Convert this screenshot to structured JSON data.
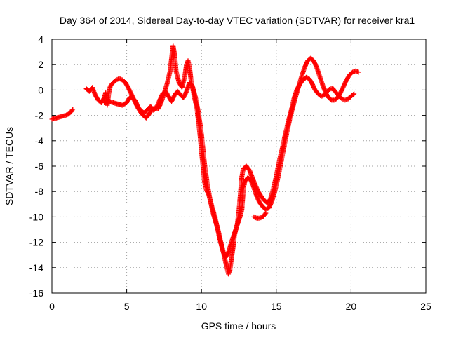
{
  "chart_data": {
    "type": "scatter",
    "title": "Day 364 of 2014, Sidereal Day-to-day VTEC variation (SDTVAR) for receiver kra1",
    "xlabel": "GPS time / hours",
    "ylabel": "SDTVAR / TECUs",
    "xlim": [
      0,
      25
    ],
    "ylim": [
      -16,
      4
    ],
    "xticks": [
      0,
      5,
      10,
      15,
      20,
      25
    ],
    "yticks": [
      -16,
      -14,
      -12,
      -10,
      -8,
      -6,
      -4,
      -2,
      0,
      2,
      4
    ],
    "grid": true,
    "marker": "plus",
    "color": "#ff0000",
    "series": [
      {
        "points": [
          [
            0.0,
            -2.3
          ],
          [
            0.3,
            -2.2
          ],
          [
            0.6,
            -2.1
          ],
          [
            0.9,
            -2.0
          ],
          [
            1.1,
            -1.9
          ],
          [
            1.3,
            -1.7
          ],
          [
            1.4,
            -1.5
          ]
        ]
      },
      {
        "points": [
          [
            2.3,
            0.1
          ],
          [
            2.5,
            -0.1
          ],
          [
            2.7,
            0.2
          ],
          [
            2.9,
            -0.4
          ],
          [
            3.1,
            -0.8
          ],
          [
            3.3,
            -1.0
          ],
          [
            3.5,
            -0.6
          ],
          [
            3.6,
            -0.2
          ],
          [
            3.7,
            -1.2
          ],
          [
            3.8,
            -0.3
          ],
          [
            3.9,
            0.3
          ],
          [
            4.1,
            0.6
          ],
          [
            4.3,
            0.8
          ],
          [
            4.5,
            0.9
          ],
          [
            4.7,
            0.8
          ],
          [
            4.9,
            0.6
          ],
          [
            5.1,
            0.2
          ],
          [
            5.3,
            -0.3
          ],
          [
            5.5,
            -0.8
          ],
          [
            5.7,
            -1.3
          ],
          [
            5.9,
            -1.7
          ],
          [
            6.1,
            -2.0
          ],
          [
            6.3,
            -2.2
          ],
          [
            6.5,
            -1.9
          ],
          [
            6.7,
            -1.5
          ],
          [
            6.9,
            -1.4
          ],
          [
            7.1,
            -1.5
          ],
          [
            7.3,
            -1.0
          ],
          [
            7.5,
            -0.3
          ],
          [
            7.7,
            0.5
          ],
          [
            7.9,
            1.5
          ],
          [
            8.0,
            2.5
          ],
          [
            8.1,
            3.5
          ],
          [
            8.2,
            2.8
          ],
          [
            8.3,
            1.5
          ],
          [
            8.5,
            0.6
          ],
          [
            8.7,
            0.2
          ],
          [
            8.9,
            1.2
          ],
          [
            9.0,
            2.0
          ],
          [
            9.1,
            2.3
          ],
          [
            9.2,
            1.8
          ],
          [
            9.3,
            0.8
          ],
          [
            9.5,
            -0.4
          ],
          [
            9.7,
            -1.5
          ],
          [
            9.8,
            -2.5
          ],
          [
            9.9,
            -3.5
          ],
          [
            10.0,
            -4.8
          ],
          [
            10.1,
            -6.0
          ],
          [
            10.2,
            -7.2
          ],
          [
            10.3,
            -7.8
          ],
          [
            10.5,
            -8.3
          ],
          [
            10.7,
            -9.2
          ],
          [
            10.9,
            -10.0
          ],
          [
            11.1,
            -11.0
          ],
          [
            11.3,
            -12.0
          ],
          [
            11.5,
            -13.0
          ],
          [
            11.7,
            -14.0
          ],
          [
            11.8,
            -14.5
          ],
          [
            11.9,
            -14.2
          ],
          [
            12.0,
            -13.3
          ],
          [
            12.1,
            -12.5
          ],
          [
            12.2,
            -11.5
          ],
          [
            12.4,
            -10.5
          ],
          [
            12.5,
            -9.6
          ],
          [
            12.6,
            -8.2
          ],
          [
            12.7,
            -6.8
          ],
          [
            12.8,
            -6.2
          ],
          [
            13.0,
            -6.0
          ],
          [
            13.2,
            -6.3
          ],
          [
            13.4,
            -6.9
          ],
          [
            13.6,
            -7.5
          ],
          [
            13.8,
            -8.0
          ],
          [
            14.0,
            -8.4
          ],
          [
            14.2,
            -8.7
          ],
          [
            14.4,
            -8.9
          ],
          [
            14.6,
            -8.6
          ],
          [
            14.8,
            -7.8
          ],
          [
            15.0,
            -6.8
          ],
          [
            15.2,
            -5.6
          ],
          [
            15.4,
            -4.6
          ],
          [
            15.6,
            -3.5
          ],
          [
            15.8,
            -2.5
          ],
          [
            16.0,
            -1.6
          ],
          [
            16.2,
            -0.6
          ],
          [
            16.4,
            0.1
          ],
          [
            16.6,
            0.5
          ],
          [
            16.8,
            0.8
          ],
          [
            17.0,
            1.0
          ],
          [
            17.2,
            0.9
          ],
          [
            17.4,
            0.5
          ],
          [
            17.6,
            0.0
          ],
          [
            17.8,
            -0.3
          ],
          [
            18.0,
            -0.5
          ],
          [
            18.2,
            -0.4
          ],
          [
            18.4,
            -0.1
          ],
          [
            18.6,
            0.1
          ],
          [
            18.8,
            0.1
          ],
          [
            19.0,
            -0.2
          ],
          [
            19.2,
            -0.5
          ],
          [
            19.4,
            -0.7
          ],
          [
            19.6,
            -0.8
          ],
          [
            19.8,
            -0.7
          ],
          [
            20.0,
            -0.5
          ],
          [
            20.2,
            -0.3
          ]
        ]
      },
      {
        "points": [
          [
            3.5,
            -1.0
          ],
          [
            3.8,
            -0.9
          ],
          [
            4.1,
            -1.0
          ],
          [
            4.4,
            -1.1
          ],
          [
            4.7,
            -1.2
          ],
          [
            5.0,
            -1.0
          ],
          [
            5.2,
            -0.6
          ],
          [
            5.4,
            -0.6
          ],
          [
            5.6,
            -0.9
          ],
          [
            5.8,
            -1.4
          ],
          [
            6.0,
            -1.7
          ],
          [
            6.2,
            -1.8
          ],
          [
            6.4,
            -1.5
          ],
          [
            6.6,
            -1.3
          ],
          [
            6.8,
            -1.6
          ],
          [
            7.0,
            -1.4
          ],
          [
            7.2,
            -0.8
          ],
          [
            7.4,
            -0.3
          ],
          [
            7.6,
            -0.1
          ],
          [
            7.8,
            -0.5
          ],
          [
            8.0,
            -0.9
          ],
          [
            8.2,
            -0.4
          ],
          [
            8.4,
            -0.1
          ],
          [
            8.6,
            -0.4
          ],
          [
            8.8,
            -0.6
          ],
          [
            9.0,
            -0.1
          ],
          [
            9.2,
            0.6
          ],
          [
            9.4,
            0.3
          ],
          [
            9.6,
            -0.6
          ],
          [
            9.8,
            -1.8
          ],
          [
            10.0,
            -3.5
          ],
          [
            10.2,
            -5.8
          ],
          [
            10.4,
            -7.5
          ],
          [
            10.6,
            -8.8
          ],
          [
            10.8,
            -9.8
          ],
          [
            11.0,
            -10.6
          ],
          [
            11.2,
            -11.6
          ],
          [
            11.4,
            -12.6
          ],
          [
            11.6,
            -13.2
          ],
          [
            11.8,
            -12.8
          ],
          [
            12.0,
            -12.0
          ],
          [
            12.2,
            -11.3
          ],
          [
            12.4,
            -10.6
          ],
          [
            12.6,
            -9.9
          ],
          [
            12.7,
            -9.4
          ],
          [
            12.8,
            -7.8
          ],
          [
            12.9,
            -7.2
          ],
          [
            13.1,
            -6.9
          ],
          [
            13.3,
            -7.1
          ],
          [
            13.5,
            -7.7
          ],
          [
            13.7,
            -8.4
          ],
          [
            13.9,
            -8.9
          ],
          [
            14.1,
            -9.2
          ],
          [
            14.3,
            -9.4
          ],
          [
            14.5,
            -9.3
          ],
          [
            14.7,
            -8.8
          ],
          [
            14.9,
            -8.0
          ],
          [
            15.1,
            -7.0
          ],
          [
            15.3,
            -5.8
          ],
          [
            15.5,
            -4.6
          ],
          [
            15.7,
            -3.4
          ],
          [
            15.9,
            -2.3
          ],
          [
            16.1,
            -1.4
          ],
          [
            16.3,
            -0.5
          ],
          [
            16.5,
            0.3
          ],
          [
            16.7,
            1.1
          ],
          [
            16.9,
            1.8
          ],
          [
            17.1,
            2.3
          ],
          [
            17.3,
            2.5
          ],
          [
            17.5,
            2.3
          ],
          [
            17.7,
            1.8
          ],
          [
            17.9,
            1.1
          ],
          [
            18.1,
            0.4
          ],
          [
            18.3,
            -0.2
          ],
          [
            18.5,
            -0.6
          ],
          [
            18.7,
            -0.8
          ],
          [
            18.9,
            -0.8
          ],
          [
            19.1,
            -0.6
          ],
          [
            19.3,
            -0.2
          ],
          [
            19.5,
            0.3
          ],
          [
            19.7,
            0.8
          ],
          [
            19.9,
            1.2
          ],
          [
            20.1,
            1.4
          ],
          [
            20.3,
            1.5
          ],
          [
            20.5,
            1.4
          ]
        ]
      },
      {
        "points": [
          [
            13.5,
            -10.0
          ],
          [
            13.7,
            -10.1
          ],
          [
            13.9,
            -10.1
          ],
          [
            14.1,
            -10.0
          ],
          [
            14.3,
            -9.7
          ]
        ]
      }
    ]
  }
}
